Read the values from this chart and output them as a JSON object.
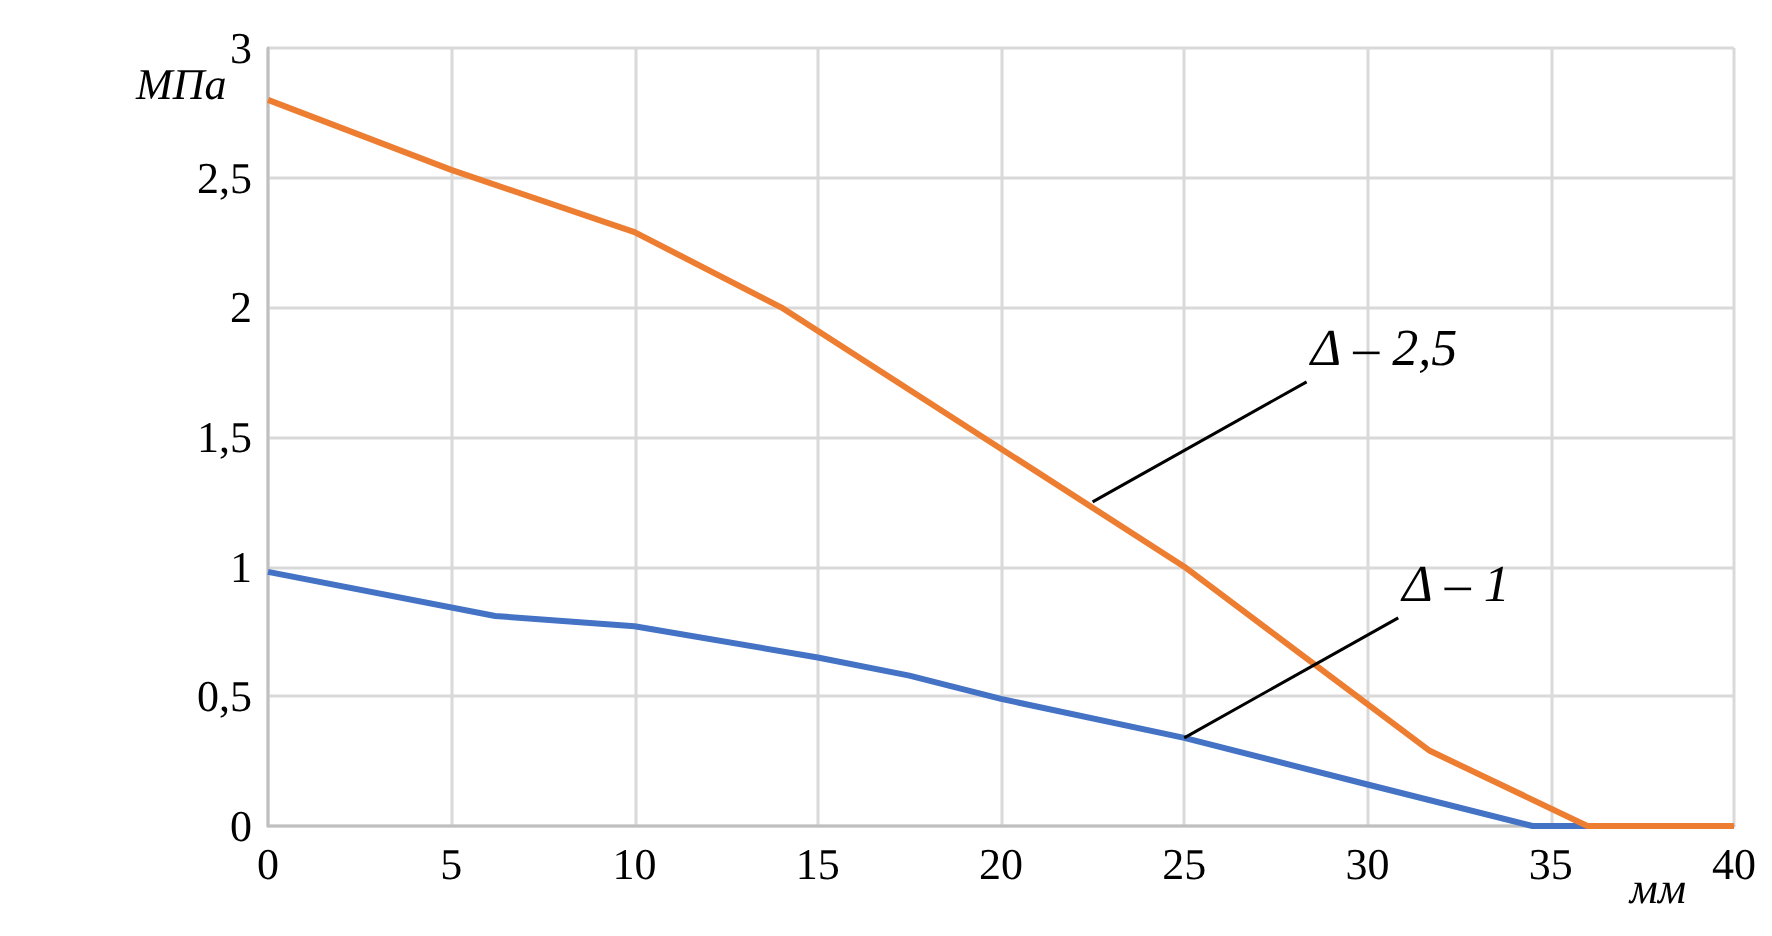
{
  "chart_data": {
    "type": "line",
    "xlabel": "мм",
    "ylabel": "МПа",
    "xlim": [
      0,
      40
    ],
    "xticks": [
      0,
      5,
      10,
      15,
      20,
      25,
      30,
      35,
      40
    ],
    "ylim": [
      0,
      3
    ],
    "yticks": [
      0,
      {
        "value": 0.5,
        "label": "0,5"
      },
      1,
      {
        "value": 1.5,
        "label": "1,5"
      },
      2,
      {
        "value": 2.5,
        "label": "2,5"
      },
      3
    ],
    "grid": true,
    "marker": "none",
    "line_style": "solid",
    "series": [
      {
        "color": "#ed7d31",
        "x": [
          0,
          5,
          10,
          14,
          25,
          31.7,
          36,
          40
        ],
        "values": [
          2.8,
          2.53,
          2.29,
          2.0,
          1.0,
          0.29,
          0,
          0
        ]
      },
      {
        "color": "#4472c4",
        "x": [
          0,
          6.2,
          10,
          15,
          17.5,
          20,
          25,
          30,
          34.5,
          40
        ],
        "values": [
          0.98,
          0.81,
          0.77,
          0.65,
          0.58,
          0.49,
          0.34,
          0.16,
          0,
          0
        ]
      }
    ],
    "annotations": [
      {
        "text": "Δ – 2,5",
        "x": 22.5,
        "y": 1.25
      },
      {
        "text": "Δ – 1",
        "x": 25,
        "y": 0.34
      }
    ]
  }
}
